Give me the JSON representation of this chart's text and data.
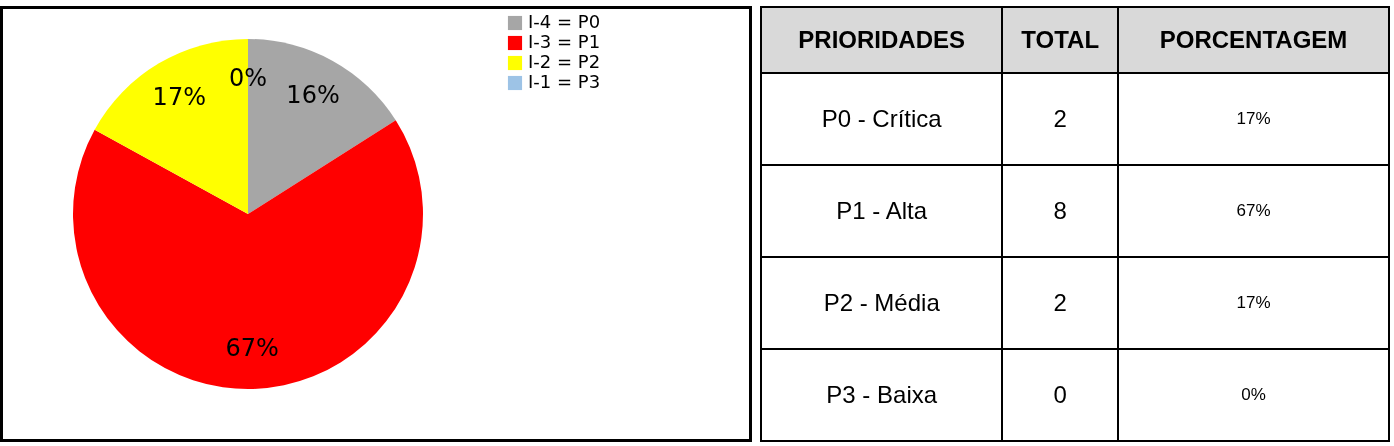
{
  "chart_data": [
    {
      "type": "pie",
      "categories": [
        "I-4 = P0",
        "I-3 = P1",
        "I-2 = P2",
        "I-1 = P3"
      ],
      "values": [
        16,
        67,
        17,
        0
      ],
      "colors": [
        "#a6a6a6",
        "#ff0000",
        "#ffff00",
        "#9dc3e6"
      ],
      "value_labels": [
        "16%",
        "67%",
        "17%",
        "0%"
      ],
      "legend": "right"
    },
    {
      "type": "other",
      "annotations": [
        "PRIORIDADES",
        "TOTAL",
        "PORCENTAGEM",
        "P0 - Crítica",
        "2",
        "17%",
        "P1 - Alta",
        "8",
        "67%",
        "P2 - Média",
        "2",
        "17%",
        "P3 - Baixa",
        "0",
        "0%"
      ]
    }
  ]
}
